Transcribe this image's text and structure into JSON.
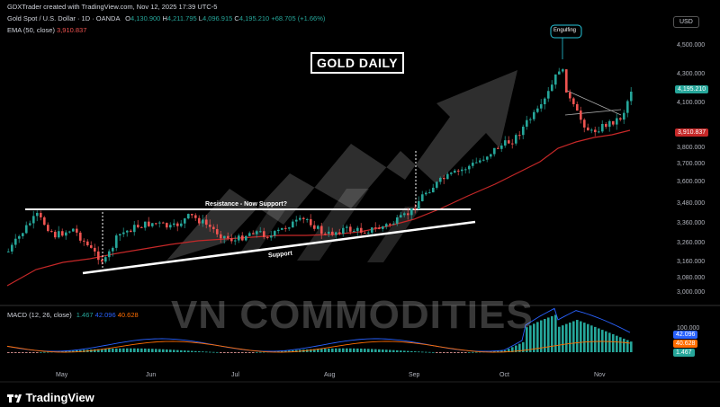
{
  "header": {
    "attribution": "GDXTrader created with TradingView.com, Nov 12, 2025 17:39 UTC-5",
    "symbol": "Gold Spot / U.S. Dollar · 1D · OANDA",
    "o_lbl": "O",
    "o_val": "4,130.900",
    "h_lbl": "H",
    "h_val": "4,211.795",
    "l_lbl": "L",
    "l_val": "4,096.915",
    "c_lbl": "C",
    "c_val": "4,195.210",
    "chg": "+68.705 (+1.66%)",
    "ema_label": "EMA (50, close)",
    "ema_val": "3,910.837"
  },
  "currency_button": "USD",
  "chart_title": "GOLD DAILY",
  "watermark": "VN COMMODITIES",
  "brand": "TradingView",
  "annotations": {
    "engulfing": "Engulfing",
    "resistance": "Resistance - Now Support?",
    "support": "Support"
  },
  "macd": {
    "label": "MACD (12, 26, close)",
    "v1": "1.467",
    "v2": "42.096",
    "v3": "40.628",
    "axis_top": "100.000",
    "tags": [
      "42.096",
      "40.628",
      "1.467"
    ]
  },
  "price_tags": {
    "last": "4,195.210",
    "ema": "3,910.837"
  },
  "colors": {
    "up": "#26a69a",
    "down": "#ef5350",
    "ema": "#c62828",
    "macd": "#2962ff",
    "signal": "#ff6d00"
  },
  "chart_data": {
    "type": "candlestick",
    "y_ticks": [
      "4,500.000",
      "4,300.000",
      "4,100.000",
      "3,800.000",
      "3,700.000",
      "3,600.000",
      "3,480.000",
      "3,360.000",
      "3,260.000",
      "3,160.000",
      "3,080.000",
      "3,000.000"
    ],
    "x_ticks": [
      "May",
      "Jun",
      "Jul",
      "Aug",
      "Sep",
      "Oct",
      "Nov"
    ],
    "last_close": 4195.21,
    "ema_50": 3910.837
  }
}
